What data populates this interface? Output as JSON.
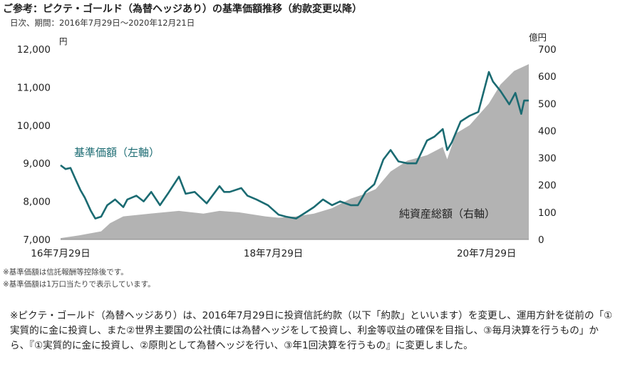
{
  "header": {
    "title": "ご参考：ピクテ・ゴールド（為替ヘッジあり）の基準価額推移（約款変更以降）",
    "subtitle": "日次、期間：2016年7月29日～2020年12月21日"
  },
  "chart_data": {
    "type": "line+area",
    "left_axis": {
      "unit": "円",
      "ylim": [
        7000,
        12000
      ],
      "ticks": [
        "7,000",
        "8,000",
        "9,000",
        "10,000",
        "11,000",
        "12,000"
      ]
    },
    "right_axis": {
      "unit": "億円",
      "ylim": [
        0,
        700
      ],
      "ticks": [
        "0",
        "100",
        "200",
        "300",
        "400",
        "500",
        "600",
        "700"
      ]
    },
    "x_tick_labels": [
      "16年7月29日",
      "18年7月29日",
      "20年7月29日"
    ],
    "series": [
      {
        "name": "基準価額（左軸）",
        "axis": "left",
        "color": "#1b6b72",
        "x": [
          "2016-07-29",
          "2016-08-15",
          "2016-09-01",
          "2016-09-20",
          "2016-10-05",
          "2016-10-20",
          "2016-11-10",
          "2016-11-25",
          "2016-12-15",
          "2017-01-05",
          "2017-02-01",
          "2017-03-01",
          "2017-03-15",
          "2017-04-15",
          "2017-05-10",
          "2017-06-05",
          "2017-07-05",
          "2017-08-01",
          "2017-09-08",
          "2017-10-01",
          "2017-11-01",
          "2017-12-12",
          "2018-01-25",
          "2018-02-10",
          "2018-03-01",
          "2018-04-10",
          "2018-05-01",
          "2018-06-01",
          "2018-07-10",
          "2018-08-16",
          "2018-09-10",
          "2018-10-15",
          "2018-11-15",
          "2018-12-15",
          "2019-01-15",
          "2019-02-15",
          "2019-03-15",
          "2019-04-20",
          "2019-05-15",
          "2019-06-10",
          "2019-07-10",
          "2019-08-10",
          "2019-09-04",
          "2019-10-01",
          "2019-11-01",
          "2019-12-01",
          "2020-01-07",
          "2020-02-01",
          "2020-03-01",
          "2020-03-16",
          "2020-04-01",
          "2020-05-01",
          "2020-06-01",
          "2020-07-01",
          "2020-08-06",
          "2020-08-20",
          "2020-09-15",
          "2020-10-15",
          "2020-11-05",
          "2020-11-25",
          "2020-12-05",
          "2020-12-21"
        ],
        "y": [
          8950,
          8850,
          8880,
          8550,
          8300,
          8100,
          7750,
          7550,
          7600,
          7900,
          8050,
          7850,
          8050,
          8150,
          8000,
          8250,
          7900,
          8200,
          8650,
          8200,
          8250,
          7950,
          8400,
          8250,
          8250,
          8350,
          8150,
          8050,
          7900,
          7650,
          7600,
          7550,
          7700,
          7850,
          8050,
          7900,
          8000,
          7900,
          7900,
          8250,
          8450,
          9100,
          9350,
          9050,
          9000,
          9000,
          9600,
          9700,
          9900,
          9350,
          9550,
          10100,
          10250,
          10350,
          11400,
          11150,
          10900,
          10550,
          10850,
          10300,
          10650,
          10650
        ]
      },
      {
        "name": "純資産総額（右軸）",
        "axis": "right",
        "color": "#b3b3b3",
        "x": [
          "2016-07-29",
          "2016-10-01",
          "2016-12-15",
          "2017-01-15",
          "2017-03-01",
          "2017-06-01",
          "2017-09-08",
          "2017-12-01",
          "2018-01-25",
          "2018-04-01",
          "2018-07-01",
          "2018-08-16",
          "2018-10-15",
          "2018-12-15",
          "2019-02-15",
          "2019-04-20",
          "2019-06-01",
          "2019-07-15",
          "2019-09-04",
          "2019-11-01",
          "2020-01-07",
          "2020-03-01",
          "2020-03-16",
          "2020-04-15",
          "2020-06-01",
          "2020-08-06",
          "2020-09-15",
          "2020-11-01",
          "2020-12-21"
        ],
        "y": [
          5,
          15,
          30,
          60,
          85,
          95,
          105,
          95,
          105,
          100,
          85,
          80,
          85,
          95,
          115,
          150,
          165,
          185,
          250,
          290,
          310,
          340,
          295,
          390,
          420,
          500,
          570,
          620,
          645
        ]
      }
    ],
    "annotations": [
      "基準価額（左軸）",
      "純資産総額（右軸）"
    ]
  },
  "notes": [
    "※基準価額は信託報酬等控除後です。",
    "※基準価額は1万口当たりで表示しています。"
  ],
  "paragraph": "※ピクテ・ゴールド（為替ヘッジあり）は、2016年7月29日に投資信託約款（以下「約款」といいます）を変更し、運用方針を従前の「①実質的に金に投資し、また②世界主要国の公社債には為替ヘッジをして投資し、利金等収益の確保を目指し、③毎月決算を行うもの」から、『①実質的に金に投資し、②原則として為替ヘッジを行い、③年1回決算を行うもの』に変更しました。"
}
